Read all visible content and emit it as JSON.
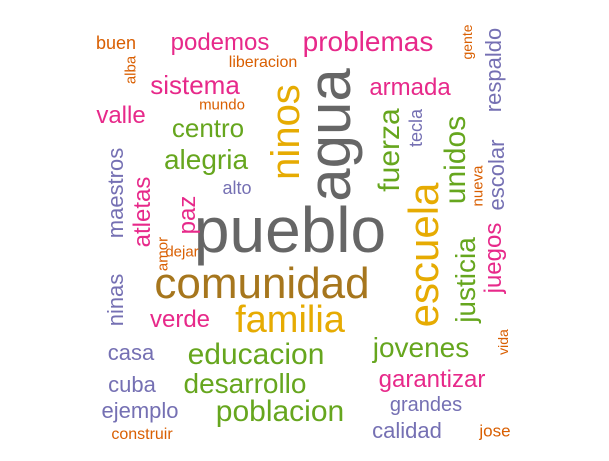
{
  "colors": {
    "gray": "#666666",
    "brown": "#A6761D",
    "gold": "#E6AB02",
    "green": "#66A61E",
    "magenta": "#E7298A",
    "purple": "#7570B3",
    "orange": "#D95F02"
  },
  "words": [
    {
      "id": "pueblo",
      "text": "pueblo",
      "color": "gray",
      "rotated": false
    },
    {
      "id": "agua",
      "text": "agua",
      "color": "gray",
      "rotated": true
    },
    {
      "id": "comunidad",
      "text": "comunidad",
      "color": "brown",
      "rotated": false
    },
    {
      "id": "familia",
      "text": "familia",
      "color": "gold",
      "rotated": false
    },
    {
      "id": "ninos",
      "text": "ninos",
      "color": "gold",
      "rotated": true
    },
    {
      "id": "escuela",
      "text": "escuela",
      "color": "gold",
      "rotated": true
    },
    {
      "id": "fuerza",
      "text": "fuerza",
      "color": "green",
      "rotated": true
    },
    {
      "id": "unidos",
      "text": "unidos",
      "color": "green",
      "rotated": true
    },
    {
      "id": "justicia",
      "text": "justicia",
      "color": "green",
      "rotated": true
    },
    {
      "id": "educacion",
      "text": "educacion",
      "color": "green",
      "rotated": false
    },
    {
      "id": "jovenes",
      "text": "jovenes",
      "color": "green",
      "rotated": false
    },
    {
      "id": "desarrollo",
      "text": "desarrollo",
      "color": "green",
      "rotated": false
    },
    {
      "id": "poblacion",
      "text": "poblacion",
      "color": "green",
      "rotated": false
    },
    {
      "id": "alegria",
      "text": "alegria",
      "color": "green",
      "rotated": false
    },
    {
      "id": "centro",
      "text": "centro",
      "color": "green",
      "rotated": false
    },
    {
      "id": "verde",
      "text": "verde",
      "color": "magenta",
      "rotated": false
    },
    {
      "id": "problemas",
      "text": "problemas",
      "color": "magenta",
      "rotated": false
    },
    {
      "id": "sistema",
      "text": "sistema",
      "color": "magenta",
      "rotated": false
    },
    {
      "id": "garantizar",
      "text": "garantizar",
      "color": "magenta",
      "rotated": false
    },
    {
      "id": "podemos",
      "text": "podemos",
      "color": "magenta",
      "rotated": false
    },
    {
      "id": "armada",
      "text": "armada",
      "color": "magenta",
      "rotated": false
    },
    {
      "id": "valle",
      "text": "valle",
      "color": "magenta",
      "rotated": false
    },
    {
      "id": "paz",
      "text": "paz",
      "color": "magenta",
      "rotated": true
    },
    {
      "id": "atletas",
      "text": "atletas",
      "color": "magenta",
      "rotated": true
    },
    {
      "id": "juegos",
      "text": "juegos",
      "color": "magenta",
      "rotated": true
    },
    {
      "id": "respaldo",
      "text": "respaldo",
      "color": "purple",
      "rotated": true
    },
    {
      "id": "escolar",
      "text": "escolar",
      "color": "purple",
      "rotated": true
    },
    {
      "id": "maestros",
      "text": "maestros",
      "color": "purple",
      "rotated": true
    },
    {
      "id": "ninas",
      "text": "ninas",
      "color": "purple",
      "rotated": true
    },
    {
      "id": "tecla",
      "text": "tecla",
      "color": "purple",
      "rotated": true
    },
    {
      "id": "casa",
      "text": "casa",
      "color": "purple",
      "rotated": false
    },
    {
      "id": "cuba",
      "text": "cuba",
      "color": "purple",
      "rotated": false
    },
    {
      "id": "ejemplo",
      "text": "ejemplo",
      "color": "purple",
      "rotated": false
    },
    {
      "id": "grandes",
      "text": "grandes",
      "color": "purple",
      "rotated": false
    },
    {
      "id": "calidad",
      "text": "calidad",
      "color": "purple",
      "rotated": false
    },
    {
      "id": "alto",
      "text": "alto",
      "color": "purple",
      "rotated": false
    },
    {
      "id": "buen",
      "text": "buen",
      "color": "orange",
      "rotated": false
    },
    {
      "id": "alba",
      "text": "alba",
      "color": "orange",
      "rotated": true
    },
    {
      "id": "liberacion",
      "text": "liberacion",
      "color": "orange",
      "rotated": false
    },
    {
      "id": "mundo",
      "text": "mundo",
      "color": "orange",
      "rotated": false
    },
    {
      "id": "gente",
      "text": "gente",
      "color": "orange",
      "rotated": true
    },
    {
      "id": "nueva",
      "text": "nueva",
      "color": "orange",
      "rotated": true
    },
    {
      "id": "amor",
      "text": "amor",
      "color": "orange",
      "rotated": true
    },
    {
      "id": "dejar",
      "text": "dejar",
      "color": "orange",
      "rotated": false
    },
    {
      "id": "vida",
      "text": "vida",
      "color": "orange",
      "rotated": true
    },
    {
      "id": "construir",
      "text": "construir",
      "color": "orange",
      "rotated": false
    },
    {
      "id": "jose",
      "text": "jose",
      "color": "orange",
      "rotated": false
    }
  ]
}
